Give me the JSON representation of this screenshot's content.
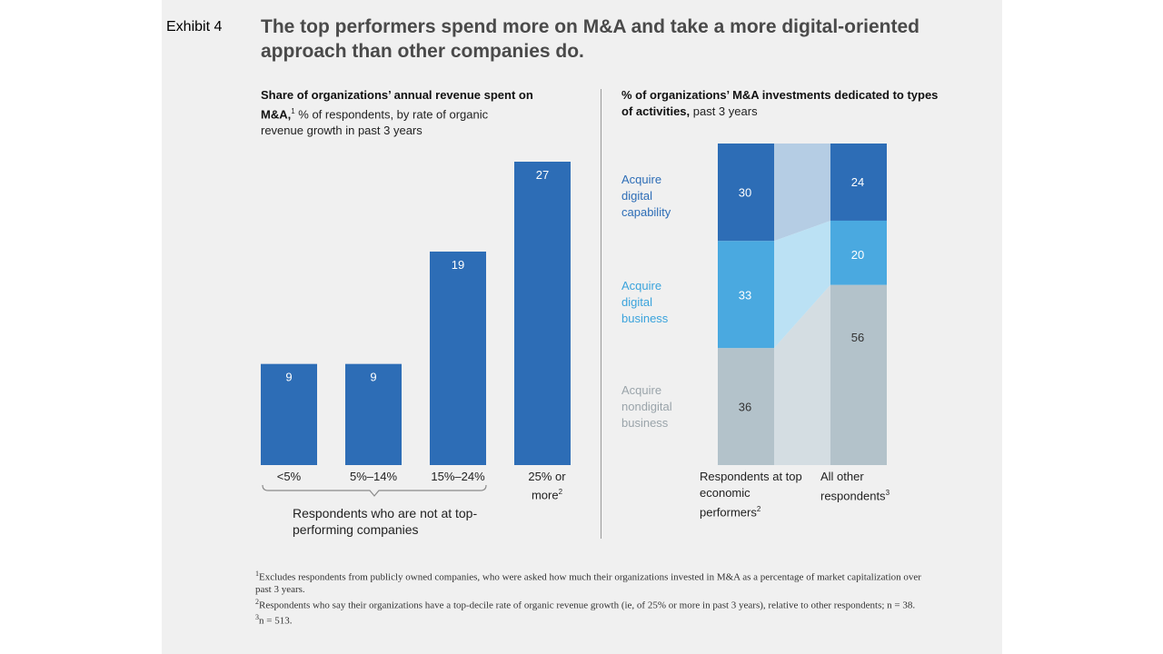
{
  "exhibit_label": "Exhibit 4",
  "title": "The top performers spend more on M&A and take a more digital-oriented approach than other companies do.",
  "colors": {
    "bar_dark": "#2d6db6",
    "bar_mid": "#4aa9e0",
    "bar_gray": "#b3c2ca",
    "flow_dark": "#b5cde4",
    "flow_mid": "#bbe1f4",
    "flow_gray": "#d4dde2",
    "label_dark": "#2d6db6",
    "label_mid": "#3aa3dc",
    "label_gray": "#9aa4aa"
  },
  "left": {
    "subtitle_bold": "Share of organizations’ annual revenue spent on M&A,",
    "subtitle_sup": "1",
    "subtitle_rest": " % of respondents, by rate of organic revenue growth in past 3 years",
    "brace_label": "Respondents who are not at top-performing companies"
  },
  "right": {
    "subtitle_bold": "% of organizations’ M&A investments dedicated to types of activities,",
    "subtitle_rest": " past 3 years",
    "col1_label": "Respondents at top economic performers",
    "col1_sup": "2",
    "col2_label": "All other respondents",
    "col2_sup": "3"
  },
  "chart_data": [
    {
      "type": "bar",
      "title": "Share of organizations’ annual revenue spent on M&A",
      "categories": [
        "<5%",
        "5%–14%",
        "15%–24%",
        "25% or more"
      ],
      "category_sups": [
        "",
        "",
        "",
        "2"
      ],
      "values": [
        9,
        9,
        19,
        27
      ],
      "ylim": [
        0,
        27
      ],
      "xlabel": "",
      "ylabel": "% of respondents"
    },
    {
      "type": "bar",
      "stacked": true,
      "title": "% of organizations’ M&A investments dedicated to types of activities",
      "categories": [
        "Respondents at top economic performers",
        "All other respondents"
      ],
      "series": [
        {
          "name": "Acquire digital capability",
          "values": [
            30,
            24
          ]
        },
        {
          "name": "Acquire digital business",
          "values": [
            33,
            20
          ]
        },
        {
          "name": "Acquire nondigital business",
          "values": [
            36,
            56
          ]
        }
      ],
      "ylim": [
        0,
        100
      ]
    }
  ],
  "footnotes": [
    {
      "sup": "1",
      "text": "Excludes respondents from publicly owned companies, who were asked how much their organizations invested in M&A as a percentage of market capitalization over past 3 years."
    },
    {
      "sup": "2",
      "text": "Respondents who say their organizations have a top-decile rate of organic revenue growth (ie, of 25% or more in past 3 years), relative to other respondents; n = 38."
    },
    {
      "sup": "3",
      "text": "n = 513."
    }
  ]
}
